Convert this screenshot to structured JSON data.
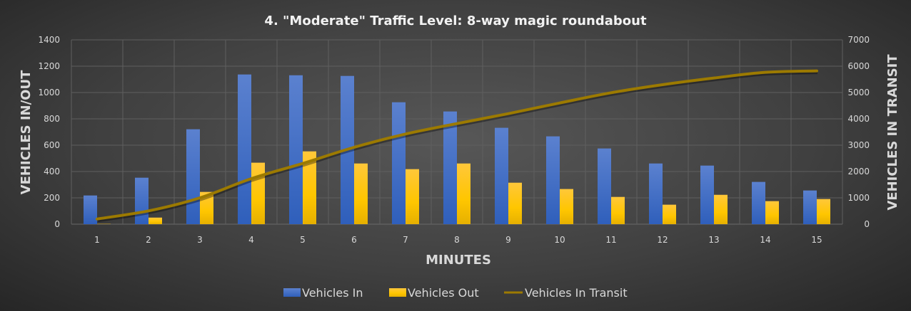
{
  "chart_data": {
    "type": "bar",
    "title": "4. \"Moderate\" Traffic Level: 8-way magic roundabout",
    "xlabel": "MINUTES",
    "ylabel": "VEHICLES IN/OUT",
    "y2label": "VEHICLES IN TRANSIT",
    "categories": [
      "1",
      "2",
      "3",
      "4",
      "5",
      "6",
      "7",
      "8",
      "9",
      "10",
      "11",
      "12",
      "13",
      "14",
      "15"
    ],
    "ylim": [
      0,
      1400
    ],
    "y2lim": [
      0,
      7000
    ],
    "yticks": [
      "0",
      "200",
      "400",
      "600",
      "800",
      "1000",
      "1200",
      "1400"
    ],
    "y2ticks": [
      "0",
      "1000",
      "2000",
      "3000",
      "4000",
      "5000",
      "6000",
      "7000"
    ],
    "grid": true,
    "legend_position": "bottom",
    "series": [
      {
        "name": "Vehicles In",
        "type": "bar",
        "axis": "left",
        "color": "#4472c4",
        "values": [
          218,
          353,
          721,
          1137,
          1131,
          1126,
          926,
          856,
          732,
          667,
          575,
          461,
          445,
          321,
          256
        ]
      },
      {
        "name": "Vehicles Out",
        "type": "bar",
        "axis": "left",
        "color": "#ffc000",
        "values": [
          2,
          50,
          245,
          467,
          553,
          461,
          418,
          461,
          315,
          267,
          207,
          148,
          223,
          175,
          191
        ]
      },
      {
        "name": "Vehicles In Transit",
        "type": "line",
        "axis": "right",
        "color": "#9c7a00",
        "values": [
          198,
          505,
          1000,
          1730,
          2306,
          2919,
          3423,
          3820,
          4198,
          4604,
          4991,
          5297,
          5550,
          5766,
          5820
        ]
      }
    ]
  }
}
